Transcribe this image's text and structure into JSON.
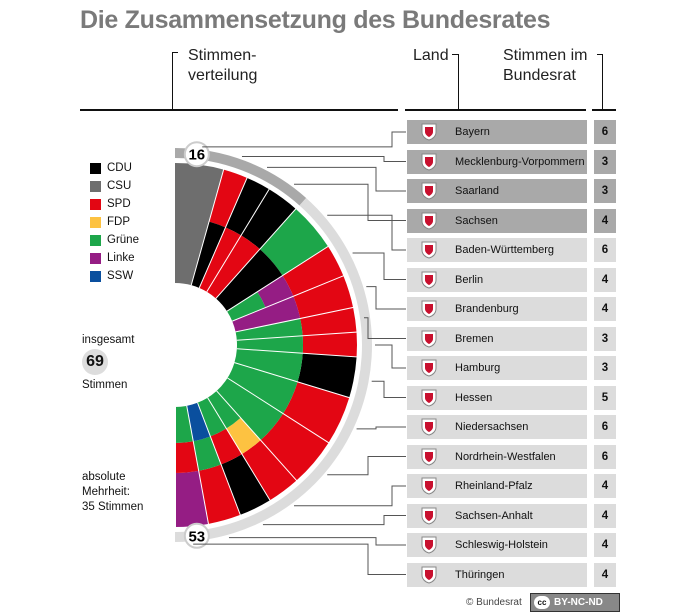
{
  "title": "Die Zusammensetzung des Bundesrates",
  "headers": {
    "distribution": "Stimmen-\nverteilung",
    "distribution_line1": "Stimmen-",
    "distribution_line2": "verteilung",
    "land": "Land",
    "votes_line1": "Stimmen im",
    "votes_line2": "Bundesrat"
  },
  "legend": [
    {
      "party": "CDU",
      "color": "#000000"
    },
    {
      "party": "CSU",
      "color": "#6e6e6e"
    },
    {
      "party": "SPD",
      "color": "#e30613"
    },
    {
      "party": "FDP",
      "color": "#fdc241"
    },
    {
      "party": "Grüne",
      "color": "#1da64a"
    },
    {
      "party": "Linke",
      "color": "#951d84"
    },
    {
      "party": "SSW",
      "color": "#0a4f9e"
    }
  ],
  "total": {
    "label_top": "insgesamt",
    "value": "69",
    "label_bottom": "Stimmen"
  },
  "majority": {
    "line1": "absolute",
    "line2": "Mehrheit:",
    "line3": "35 Stimmen"
  },
  "chart_markers": {
    "first": "16",
    "second": "53"
  },
  "states": [
    {
      "name": "Bayern",
      "votes": 6,
      "row_color": "#a9a9a9",
      "crest": "bayern-crest"
    },
    {
      "name": "Mecklenburg-Vorpommern",
      "votes": 3,
      "row_color": "#a9a9a9",
      "crest": "mv-crest"
    },
    {
      "name": "Saarland",
      "votes": 3,
      "row_color": "#a9a9a9",
      "crest": "saarland-crest"
    },
    {
      "name": "Sachsen",
      "votes": 4,
      "row_color": "#a9a9a9",
      "crest": "sachsen-crest"
    },
    {
      "name": "Baden-Württemberg",
      "votes": 6,
      "row_color": "#dcdcdc",
      "crest": "bw-crest"
    },
    {
      "name": "Berlin",
      "votes": 4,
      "row_color": "#dcdcdc",
      "crest": "berlin-crest"
    },
    {
      "name": "Brandenburg",
      "votes": 4,
      "row_color": "#dcdcdc",
      "crest": "brandenburg-crest"
    },
    {
      "name": "Bremen",
      "votes": 3,
      "row_color": "#dcdcdc",
      "crest": "bremen-crest"
    },
    {
      "name": "Hamburg",
      "votes": 3,
      "row_color": "#dcdcdc",
      "crest": "hamburg-crest"
    },
    {
      "name": "Hessen",
      "votes": 5,
      "row_color": "#dcdcdc",
      "crest": "hessen-crest"
    },
    {
      "name": "Niedersachsen",
      "votes": 6,
      "row_color": "#dcdcdc",
      "crest": "niedersachsen-crest"
    },
    {
      "name": "Nordrhein-Westfalen",
      "votes": 6,
      "row_color": "#dcdcdc",
      "crest": "nrw-crest"
    },
    {
      "name": "Rheinland-Pfalz",
      "votes": 4,
      "row_color": "#dcdcdc",
      "crest": "rlp-crest"
    },
    {
      "name": "Sachsen-Anhalt",
      "votes": 4,
      "row_color": "#dcdcdc",
      "crest": "sachsen-anhalt-crest"
    },
    {
      "name": "Schleswig-Holstein",
      "votes": 4,
      "row_color": "#dcdcdc",
      "crest": "sh-crest"
    },
    {
      "name": "Thüringen",
      "votes": 4,
      "row_color": "#dcdcdc",
      "crest": "thueringen-crest"
    }
  ],
  "chart_data": {
    "type": "pie",
    "title": "Stimmenverteilung",
    "total_votes": 69,
    "majority": 35,
    "wedges": [
      {
        "state": "Bayern",
        "votes": 6,
        "bands": [
          "CSU"
        ]
      },
      {
        "state": "Mecklenburg-Vorpommern",
        "votes": 3,
        "bands": [
          "SPD",
          "CDU"
        ]
      },
      {
        "state": "Saarland",
        "votes": 3,
        "bands": [
          "CDU",
          "SPD"
        ]
      },
      {
        "state": "Sachsen",
        "votes": 4,
        "bands": [
          "CDU",
          "SPD"
        ]
      },
      {
        "state": "Baden-Württemberg",
        "votes": 6,
        "bands": [
          "Grüne",
          "CDU"
        ]
      },
      {
        "state": "Berlin",
        "votes": 4,
        "bands": [
          "SPD",
          "Linke",
          "Grüne"
        ]
      },
      {
        "state": "Brandenburg",
        "votes": 4,
        "bands": [
          "SPD",
          "Linke"
        ]
      },
      {
        "state": "Bremen",
        "votes": 3,
        "bands": [
          "SPD",
          "Grüne"
        ]
      },
      {
        "state": "Hamburg",
        "votes": 3,
        "bands": [
          "SPD",
          "Grüne"
        ]
      },
      {
        "state": "Hessen",
        "votes": 5,
        "bands": [
          "CDU",
          "Grüne"
        ]
      },
      {
        "state": "Niedersachsen",
        "votes": 6,
        "bands": [
          "SPD",
          "Grüne"
        ]
      },
      {
        "state": "Nordrhein-Westfalen",
        "votes": 6,
        "bands": [
          "SPD",
          "Grüne"
        ]
      },
      {
        "state": "Rheinland-Pfalz",
        "votes": 4,
        "bands": [
          "SPD",
          "FDP",
          "Grüne"
        ]
      },
      {
        "state": "Sachsen-Anhalt",
        "votes": 4,
        "bands": [
          "CDU",
          "SPD",
          "Grüne"
        ]
      },
      {
        "state": "Schleswig-Holstein",
        "votes": 4,
        "bands": [
          "SPD",
          "Grüne",
          "SSW"
        ]
      },
      {
        "state": "Thüringen",
        "votes": 4,
        "bands": [
          "Linke",
          "SPD",
          "Grüne"
        ]
      }
    ],
    "legend_position": "left"
  }
}
